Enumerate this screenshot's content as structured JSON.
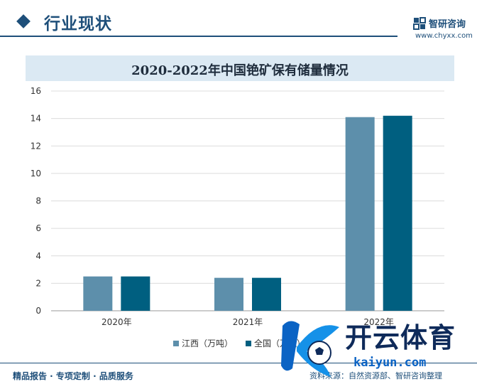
{
  "header": {
    "section_title": "行业现状",
    "brand_name": "智研咨询",
    "brand_url": "www.chyxx.com"
  },
  "chart_data": {
    "type": "bar",
    "title": "2020-2022年中国铯矿保有储量情况",
    "categories": [
      "2020年",
      "2021年",
      "2022年"
    ],
    "series": [
      {
        "name": "江西（万吨）",
        "color": "#5d8fab",
        "values": [
          2.5,
          2.4,
          14.1
        ]
      },
      {
        "name": "全国（万吨）",
        "color": "#005f80",
        "values": [
          2.5,
          2.4,
          14.2
        ]
      }
    ],
    "ylim": [
      0,
      16
    ],
    "yticks": [
      0,
      2,
      4,
      6,
      8,
      10,
      12,
      14,
      16
    ],
    "grid": true,
    "legend_position": "bottom-center"
  },
  "footer": {
    "left_text": "精品报告 · 专项定制 · 品质服务",
    "source_text": "资料来源：自然资源部、智研咨询整理"
  },
  "watermark": {
    "brand_text": "开云体育",
    "domain_text": "kaiyun.com"
  }
}
